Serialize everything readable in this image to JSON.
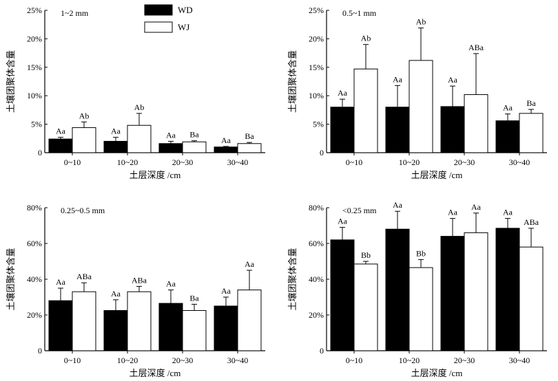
{
  "legend": {
    "items": [
      {
        "name": "WD",
        "color": "#000000"
      },
      {
        "name": "WJ",
        "color": "#ffffff"
      }
    ]
  },
  "chart_data": [
    {
      "type": "bar",
      "title": "1~2 mm",
      "xlabel": "土层深度 /cm",
      "ylabel": "土壤团聚体含量",
      "categories": [
        "0~10",
        "10~20",
        "20~30",
        "30~40"
      ],
      "ylim": [
        0,
        25
      ],
      "yticks": [
        "0",
        "5%",
        "10%",
        "15%",
        "20%",
        "25%"
      ],
      "series": [
        {
          "name": "WD",
          "values": [
            2.4,
            2.0,
            1.6,
            1.0
          ],
          "errors": [
            0.3,
            0.7,
            0.4,
            0.1
          ],
          "labels": [
            "Aa",
            "Aa",
            "Aa",
            "Aa"
          ]
        },
        {
          "name": "WJ",
          "values": [
            4.4,
            4.8,
            1.9,
            1.6
          ],
          "errors": [
            1.0,
            2.1,
            0.2,
            0.2
          ],
          "labels": [
            "Ab",
            "Ab",
            "Ba",
            "Ba"
          ]
        }
      ]
    },
    {
      "type": "bar",
      "title": "0.5~1 mm",
      "xlabel": "土层深度 /cm",
      "ylabel": "土壤团聚体含量",
      "categories": [
        "0~10",
        "10~20",
        "20~30",
        "30~40"
      ],
      "ylim": [
        0,
        25
      ],
      "yticks": [
        "0",
        "5%",
        "10%",
        "15%",
        "20%",
        "25%"
      ],
      "series": [
        {
          "name": "WD",
          "values": [
            8.0,
            8.0,
            8.1,
            5.6
          ],
          "errors": [
            1.4,
            3.8,
            3.6,
            1.2
          ],
          "labels": [
            "Aa",
            "Aa",
            "Aa",
            "Aa"
          ]
        },
        {
          "name": "WJ",
          "values": [
            14.7,
            16.2,
            10.2,
            6.9
          ],
          "errors": [
            4.3,
            5.7,
            7.2,
            0.7
          ],
          "labels": [
            "Ab",
            "Ab",
            "ABa",
            "Ba"
          ]
        }
      ]
    },
    {
      "type": "bar",
      "title": "0.25~0.5 mm",
      "xlabel": "土层深度 /cm",
      "ylabel": "土壤团聚体含量",
      "categories": [
        "0~10",
        "10~20",
        "20~30",
        "30~40"
      ],
      "ylim": [
        0,
        80
      ],
      "yticks": [
        "0",
        "20%",
        "40%",
        "60%",
        "80%"
      ],
      "series": [
        {
          "name": "WD",
          "values": [
            28,
            22.5,
            26.5,
            25
          ],
          "errors": [
            7,
            6,
            7.5,
            5
          ],
          "labels": [
            "Aa",
            "Aa",
            "Aa",
            "Aa"
          ]
        },
        {
          "name": "WJ",
          "values": [
            33,
            33,
            22.5,
            34
          ],
          "errors": [
            5,
            3,
            3.5,
            11
          ],
          "labels": [
            "ABa",
            "ABa",
            "Ba",
            "Aa"
          ]
        }
      ]
    },
    {
      "type": "bar",
      "title": "<0.25 mm",
      "xlabel": "土层深度 /cm",
      "ylabel": "土壤团聚体含量",
      "categories": [
        "0~10",
        "10~20",
        "20~30",
        "30~40"
      ],
      "ylim": [
        0,
        80
      ],
      "yticks": [
        "0",
        "20%",
        "40%",
        "60%",
        "80%"
      ],
      "series": [
        {
          "name": "WD",
          "values": [
            62,
            68,
            64,
            68.5
          ],
          "errors": [
            7,
            10,
            10,
            5.5
          ],
          "labels": [
            "Aa",
            "Aa",
            "Aa",
            "Aa"
          ]
        },
        {
          "name": "WJ",
          "values": [
            48.5,
            46.5,
            66,
            58
          ],
          "errors": [
            1.5,
            4.5,
            11,
            10.5
          ],
          "labels": [
            "Bb",
            "Bb",
            "Aa",
            "ABa"
          ]
        }
      ]
    }
  ]
}
